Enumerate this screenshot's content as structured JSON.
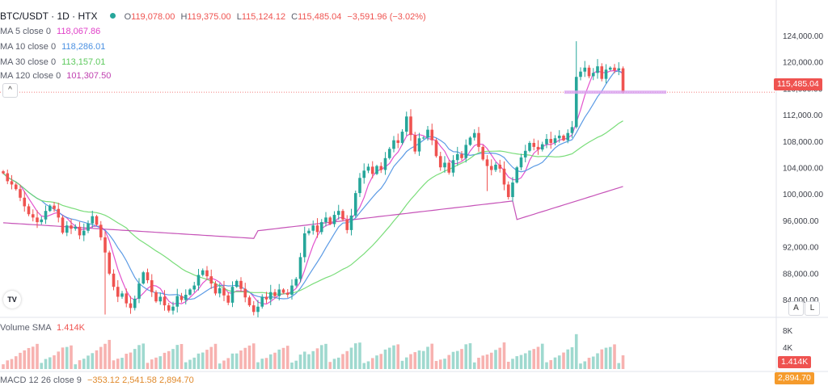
{
  "header": {
    "symbol": "BTC/USDT · 1D · HTX",
    "open_label": "O",
    "open": "119,078.00",
    "high_label": "H",
    "high": "119,375.00",
    "low_label": "L",
    "low": "115,124.12",
    "close_label": "C",
    "close": "115,485.04",
    "change": "−3,591.96 (−3.02%)"
  },
  "indicators": [
    {
      "label": "MA 5 close 0",
      "value": "118,067.86",
      "color": "#e040c8"
    },
    {
      "label": "MA 10 close 0",
      "value": "118,286.01",
      "color": "#4a90e2"
    },
    {
      "label": "MA 30 close 0",
      "value": "113,157.01",
      "color": "#6cd96c"
    },
    {
      "label": "MA 120 close 0",
      "value": "101,307.50",
      "color": "#c040b0"
    }
  ],
  "volume": {
    "label": "Volume SMA",
    "value": "1.414K",
    "tag": "1.414K",
    "color": "#ef5350"
  },
  "macd": {
    "label": "MACD 12 26 close 9",
    "values": "−353.12  2,541.58  2,894.70",
    "tag": "2,894.70"
  },
  "price_tag": "115,485.04",
  "colors": {
    "up": "#26a69a",
    "down": "#ef5350",
    "current_line": "#ef5350"
  },
  "buttons": {
    "collapse": "^",
    "auto": "A",
    "log": "L"
  },
  "logo": "TV",
  "chart_data": {
    "type": "candlestick",
    "title": "BTC/USDT · 1D · HTX",
    "y_ticks": [
      124000,
      120000,
      116000,
      112000,
      108000,
      104000,
      100000,
      96000,
      92000,
      88000,
      84000
    ],
    "y_tick_labels": [
      "124,000.00",
      "120,000.00",
      "116,000.00",
      "112,000.00",
      "108,000.00",
      "104,000.00",
      "100,000.00",
      "96,000.00",
      "92,000.00",
      "88,000.00",
      "84,000.00"
    ],
    "ylim": [
      81500,
      127000
    ],
    "volume_ticks": [
      "8K",
      "4K"
    ],
    "volume_ylim": [
      0,
      9000
    ],
    "current_price": 115485.04,
    "closes": [
      103200,
      102000,
      101500,
      100800,
      99500,
      98200,
      97000,
      96500,
      95800,
      96200,
      97500,
      98300,
      97800,
      96500,
      94200,
      95300,
      94800,
      95100,
      93800,
      94500,
      95600,
      96700,
      95400,
      93500,
      91200,
      88000,
      86000,
      84500,
      85000,
      83500,
      82800,
      84200,
      86500,
      88200,
      87000,
      85200,
      83800,
      84500,
      83200,
      82400,
      83000,
      84600,
      84000,
      84800,
      85600,
      86200,
      87800,
      88500,
      87600,
      86500,
      85000,
      85800,
      84700,
      83600,
      86000,
      86900,
      85700,
      84400,
      83200,
      82200,
      83000,
      84500,
      84100,
      85200,
      84600,
      85600,
      85100,
      84800,
      86200,
      87200,
      90500,
      94100,
      94500,
      95300,
      94300,
      95800,
      96500,
      95500,
      96900,
      97500,
      96200,
      94600,
      96800,
      100200,
      102500,
      103600,
      104200,
      103100,
      104300,
      103700,
      105500,
      106900,
      108200,
      107800,
      109500,
      111800,
      109000,
      106500,
      108500,
      108600,
      109800,
      108200,
      105800,
      104100,
      104800,
      103300,
      105200,
      106100,
      105500,
      107500,
      108600,
      109300,
      107200,
      105300,
      104300,
      103700,
      104500,
      103900,
      101500,
      99600,
      101800,
      104100,
      105600,
      106600,
      107800,
      107200,
      106800,
      107600,
      108400,
      107800,
      108500,
      108900,
      108200,
      109300,
      110200,
      117800,
      118600,
      119200,
      117900,
      118400,
      119400,
      117500,
      118900,
      119200,
      118800,
      119100,
      115485
    ],
    "ma_series": [
      {
        "name": "MA 5",
        "color": "#e040c8",
        "period": 5
      },
      {
        "name": "MA 10",
        "color": "#4a90e2",
        "period": 10
      },
      {
        "name": "MA 30",
        "color": "#6cd96c",
        "period": 30
      },
      {
        "name": "MA 120",
        "color": "#c040b0",
        "period": 120
      }
    ]
  }
}
